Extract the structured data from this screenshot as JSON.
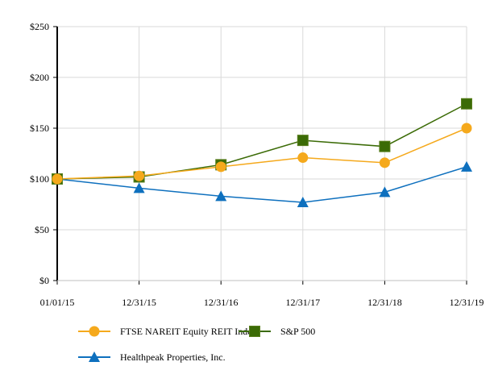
{
  "chart_data": {
    "type": "line",
    "title": "",
    "xlabel": "",
    "ylabel": "",
    "categories": [
      "01/01/15",
      "12/31/15",
      "12/31/16",
      "12/31/17",
      "12/31/18",
      "12/31/19"
    ],
    "ylim": [
      0,
      250
    ],
    "yticks": [
      0,
      50,
      100,
      150,
      200,
      250
    ],
    "ytick_labels": [
      "$0",
      "$50",
      "$100",
      "$150",
      "$200",
      "$250"
    ],
    "grid": true,
    "legend_position": "bottom",
    "series": [
      {
        "name": "FTSE NAREIT Equity REIT Index",
        "color": "#f5a91c",
        "marker": "circle",
        "values": [
          100,
          103,
          112,
          121,
          116,
          150
        ]
      },
      {
        "name": "S&P 500",
        "color": "#3b6b06",
        "marker": "square",
        "values": [
          100,
          102,
          114,
          138,
          132,
          174
        ]
      },
      {
        "name": "Healthpeak Properties, Inc.",
        "color": "#0e70be",
        "marker": "triangle",
        "values": [
          100,
          91,
          83,
          77,
          87,
          112
        ]
      }
    ]
  }
}
